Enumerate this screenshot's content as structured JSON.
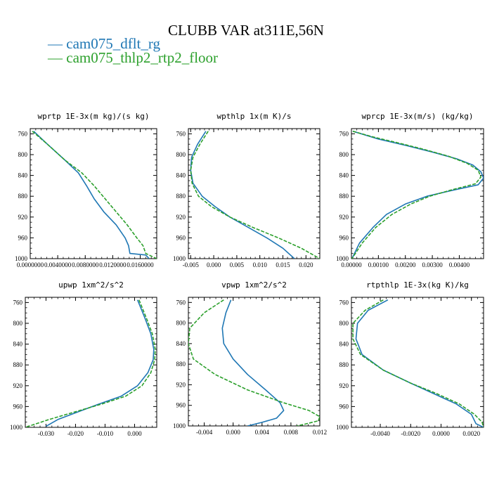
{
  "title": "CLUBB VAR at311E,56N",
  "legend": [
    {
      "name": "cam075_dflt_rg",
      "color": "#1f77b4"
    },
    {
      "name": "cam075_thlp2_rtp2_floor",
      "color": "#2ca02c"
    }
  ],
  "chart_data": [
    {
      "type": "line",
      "title": "wprtp  1E-3x(m kg)/(s kg)",
      "xlim": [
        0.0,
        0.0184
      ],
      "ylim": [
        750,
        1000
      ],
      "y_inverted": true,
      "xticks": [
        0.0,
        0.004,
        0.008,
        0.012,
        0.016
      ],
      "xtick_labels": [
        "0.0000000",
        "0.0040000",
        "0.0080000",
        "0.0120000",
        "0.0160000"
      ],
      "yticks": [
        760,
        800,
        840,
        880,
        920,
        960,
        1000
      ],
      "series": [
        {
          "name": "cam075_dflt_rg",
          "color": "#1f77b4",
          "dashed": false,
          "x": [
            0.0005,
            0.0025,
            0.005,
            0.007,
            0.0082,
            0.0093,
            0.0107,
            0.0125,
            0.0138,
            0.0143,
            0.0145,
            0.0168,
            0.0173
          ],
          "y": [
            755,
            780,
            810,
            835,
            860,
            885,
            910,
            935,
            960,
            975,
            990,
            993,
            1000
          ]
        },
        {
          "name": "cam075_thlp2_rtp2_floor",
          "color": "#2ca02c",
          "dashed": true,
          "x": [
            0.0003,
            0.0025,
            0.005,
            0.0075,
            0.0093,
            0.0109,
            0.0125,
            0.0141,
            0.0155,
            0.0164,
            0.0168,
            0.0184
          ],
          "y": [
            755,
            780,
            810,
            835,
            860,
            885,
            910,
            935,
            960,
            975,
            990,
            1000
          ]
        }
      ]
    },
    {
      "type": "line",
      "title": "wpthlp  1x(m K)/s",
      "xlim": [
        -0.0055,
        0.023
      ],
      "ylim": [
        750,
        1000
      ],
      "y_inverted": true,
      "xticks": [
        -0.005,
        0.0,
        0.005,
        0.01,
        0.015,
        0.02
      ],
      "xtick_labels": [
        "-0.005",
        "0.000",
        "0.005",
        "0.010",
        "0.015",
        "0.020"
      ],
      "yticks": [
        760,
        800,
        840,
        880,
        920,
        960,
        1000
      ],
      "series": [
        {
          "name": "cam075_dflt_rg",
          "color": "#1f77b4",
          "dashed": false,
          "x": [
            -0.0017,
            -0.0035,
            -0.0048,
            -0.005,
            -0.0045,
            -0.0025,
            0.0003,
            0.0035,
            0.0075,
            0.0115,
            0.015,
            0.0175
          ],
          "y": [
            755,
            780,
            805,
            830,
            855,
            880,
            900,
            920,
            940,
            960,
            980,
            1000
          ]
        },
        {
          "name": "cam075_thlp2_rtp2_floor",
          "color": "#2ca02c",
          "dashed": true,
          "x": [
            -0.0012,
            -0.003,
            -0.0045,
            -0.005,
            -0.0047,
            -0.0033,
            -0.0005,
            0.0035,
            0.0085,
            0.014,
            0.019,
            0.023
          ],
          "y": [
            755,
            780,
            805,
            830,
            855,
            880,
            900,
            920,
            940,
            960,
            980,
            1000
          ]
        }
      ]
    },
    {
      "type": "line",
      "title": "wprcp  1E-3x(m/s) (kg/kg)",
      "xlim": [
        0.0,
        0.0049
      ],
      "ylim": [
        750,
        1000
      ],
      "y_inverted": true,
      "xticks": [
        0.0,
        0.001,
        0.002,
        0.003,
        0.004
      ],
      "xtick_labels": [
        "0.00000",
        "0.00100",
        "0.00200",
        "0.00300",
        "0.00400"
      ],
      "yticks": [
        760,
        800,
        840,
        880,
        920,
        960,
        1000
      ],
      "series": [
        {
          "name": "cam075_dflt_rg",
          "color": "#1f77b4",
          "dashed": false,
          "x": [
            5e-05,
            0.001,
            0.002,
            0.003,
            0.0039,
            0.0045,
            0.0048,
            0.0049,
            0.0047,
            0.0038,
            0.0028,
            0.002,
            0.0013,
            0.0008,
            0.0003,
            2e-05
          ],
          "y": [
            755,
            770,
            782,
            795,
            808,
            820,
            833,
            845,
            858,
            868,
            880,
            895,
            915,
            940,
            970,
            1000
          ]
        },
        {
          "name": "cam075_thlp2_rtp2_floor",
          "color": "#2ca02c",
          "dashed": true,
          "x": [
            5e-05,
            0.0008,
            0.0017,
            0.0027,
            0.0036,
            0.0043,
            0.0047,
            0.0048,
            0.0046,
            0.0037,
            0.0029,
            0.0022,
            0.0015,
            0.0009,
            0.0004,
            2e-05
          ],
          "y": [
            755,
            766,
            777,
            790,
            803,
            817,
            830,
            843,
            856,
            868,
            880,
            895,
            915,
            940,
            970,
            1000
          ]
        }
      ]
    },
    {
      "type": "line",
      "title": "upwp  1xm^2/s^2",
      "xlim": [
        -0.037,
        0.0075
      ],
      "ylim": [
        750,
        1000
      ],
      "y_inverted": true,
      "xticks": [
        -0.03,
        -0.02,
        -0.01,
        0.0
      ],
      "xtick_labels": [
        "-0.030",
        "-0.020",
        "-0.010",
        "0.000"
      ],
      "yticks": [
        760,
        800,
        840,
        880,
        920,
        960,
        1000
      ],
      "series": [
        {
          "name": "cam075_dflt_rg",
          "color": "#1f77b4",
          "dashed": false,
          "x": [
            0.001,
            0.0035,
            0.0055,
            0.0065,
            0.0063,
            0.0045,
            0.001,
            -0.0045,
            -0.012,
            -0.019,
            -0.026,
            -0.03
          ],
          "y": [
            755,
            790,
            820,
            850,
            870,
            895,
            920,
            940,
            955,
            970,
            985,
            998
          ]
        },
        {
          "name": "cam075_thlp2_rtp2_floor",
          "color": "#2ca02c",
          "dashed": true,
          "x": [
            0.0015,
            0.004,
            0.006,
            0.007,
            0.0068,
            0.0055,
            0.0025,
            -0.003,
            -0.011,
            -0.02,
            -0.029,
            -0.037
          ],
          "y": [
            755,
            790,
            820,
            850,
            870,
            895,
            920,
            940,
            955,
            970,
            985,
            1000
          ]
        }
      ]
    },
    {
      "type": "line",
      "title": "vpwp  1xm^2/s^2",
      "xlim": [
        -0.0062,
        0.012
      ],
      "ylim": [
        750,
        1000
      ],
      "y_inverted": true,
      "xticks": [
        -0.004,
        0.0,
        0.004,
        0.008,
        0.012
      ],
      "xtick_labels": [
        "-0.004",
        "0.000",
        "0.004",
        "0.008",
        "0.012"
      ],
      "yticks": [
        760,
        800,
        840,
        880,
        920,
        960,
        1000
      ],
      "series": [
        {
          "name": "cam075_dflt_rg",
          "color": "#1f77b4",
          "dashed": false,
          "x": [
            -0.0003,
            -0.001,
            -0.0015,
            -0.0013,
            0.0,
            0.002,
            0.0045,
            0.0065,
            0.007,
            0.006,
            0.004,
            0.002
          ],
          "y": [
            755,
            780,
            810,
            840,
            870,
            900,
            930,
            955,
            970,
            985,
            993,
            1000
          ]
        },
        {
          "name": "cam075_thlp2_rtp2_floor",
          "color": "#2ca02c",
          "dashed": true,
          "x": [
            -0.0013,
            -0.004,
            -0.006,
            -0.0062,
            -0.0055,
            -0.0025,
            0.002,
            0.007,
            0.0105,
            0.012,
            0.0118,
            0.0098,
            0.0088
          ],
          "y": [
            755,
            780,
            810,
            840,
            870,
            900,
            930,
            955,
            970,
            982,
            990,
            997,
            1000
          ]
        }
      ]
    },
    {
      "type": "line",
      "title": "rtpthlp  1E-3x(kg K)/kg",
      "xlim": [
        -0.0059,
        0.0028
      ],
      "ylim": [
        750,
        1000
      ],
      "y_inverted": true,
      "xticks": [
        -0.004,
        -0.002,
        0.0,
        0.002
      ],
      "xtick_labels": [
        "-0.0040",
        "-0.0020",
        "0.0000",
        "0.0020"
      ],
      "yticks": [
        760,
        800,
        840,
        880,
        920,
        960,
        1000
      ],
      "series": [
        {
          "name": "cam075_dflt_rg",
          "color": "#1f77b4",
          "dashed": false,
          "x": [
            -0.0035,
            -0.0048,
            -0.0055,
            -0.0056,
            -0.0052,
            -0.0038,
            -0.002,
            -0.0005,
            0.001,
            0.002,
            0.0023,
            0.0028
          ],
          "y": [
            755,
            775,
            800,
            830,
            860,
            890,
            915,
            935,
            955,
            975,
            993,
            1000
          ]
        },
        {
          "name": "cam075_thlp2_rtp2_floor",
          "color": "#2ca02c",
          "dashed": true,
          "x": [
            -0.0038,
            -0.005,
            -0.0058,
            -0.0058,
            -0.0053,
            -0.0038,
            -0.002,
            -0.0003,
            0.0012,
            0.0022,
            0.0027,
            0.0028
          ],
          "y": [
            755,
            775,
            800,
            830,
            860,
            890,
            915,
            935,
            955,
            975,
            990,
            1000
          ]
        }
      ]
    }
  ]
}
